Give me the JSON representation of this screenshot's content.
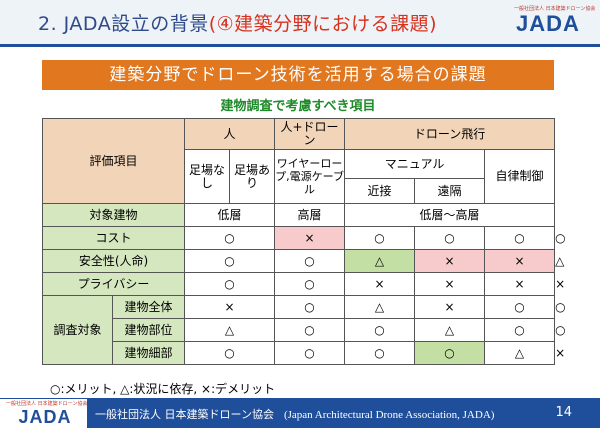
{
  "title": {
    "prefix": "2. JADA設立の背景",
    "highlight": "(④建築分野における課題)"
  },
  "logo": {
    "tagline": "一般社団法人 日本建築ドローン協会",
    "word": "JADA"
  },
  "banner": "建築分野でドローン技術を活用する場合の課題",
  "subheading": "建物調査で考慮すべき項目",
  "table": {
    "eval_header": "評価項目",
    "group_person": "人",
    "group_person_drone": "人+ドローン",
    "group_drone": "ドローン飛行",
    "col_scaffold_none": "足場なし",
    "col_scaffold_yes": "足場あり",
    "col_wire": "ワイヤーロープ,電源ケーブル",
    "col_manual": "マニュアル",
    "col_auto": "自律制御",
    "col_close": "近接",
    "col_remote": "遠隔",
    "target_label": "対象建物",
    "target_low": "低層",
    "target_high": "高層",
    "target_range": "低層〜高層",
    "survey_label": "調査対象",
    "rows": [
      {
        "label": "コスト",
        "cells": [
          "○",
          "×",
          "○",
          "○",
          "○",
          "○"
        ]
      },
      {
        "label": "安全性(人命)",
        "cells": [
          "○",
          "○",
          "△",
          "×",
          "×",
          "△"
        ]
      },
      {
        "label": "プライバシー",
        "cells": [
          "○",
          "○",
          "×",
          "×",
          "×",
          "×"
        ]
      },
      {
        "label": "建物全体",
        "cells": [
          "×",
          "○",
          "△",
          "×",
          "○",
          "○"
        ]
      },
      {
        "label": "建物部位",
        "cells": [
          "△",
          "○",
          "○",
          "△",
          "○",
          "○"
        ]
      },
      {
        "label": "建物細部",
        "cells": [
          "○",
          "○",
          "○",
          "○",
          "△",
          "×"
        ]
      }
    ]
  },
  "legend": "○:メリット, △:状況に依存, ×:デメリット",
  "footer": {
    "org": "一般社団法人 日本建築ドローン協会",
    "org_en": "(Japan Architectural Drone Association, JADA)",
    "page": "14"
  },
  "colors": {
    "title": "#2f4a8a",
    "highlight": "#d6331f",
    "banner": "#e1781f",
    "subheading": "#1f8a2a",
    "header_fill": "#f2d5b8",
    "label_fill": "#d5e7bf",
    "negative_fill": "#f7cbcb",
    "positive_fill": "#c4dfa3",
    "footer": "#1f4e9a"
  }
}
